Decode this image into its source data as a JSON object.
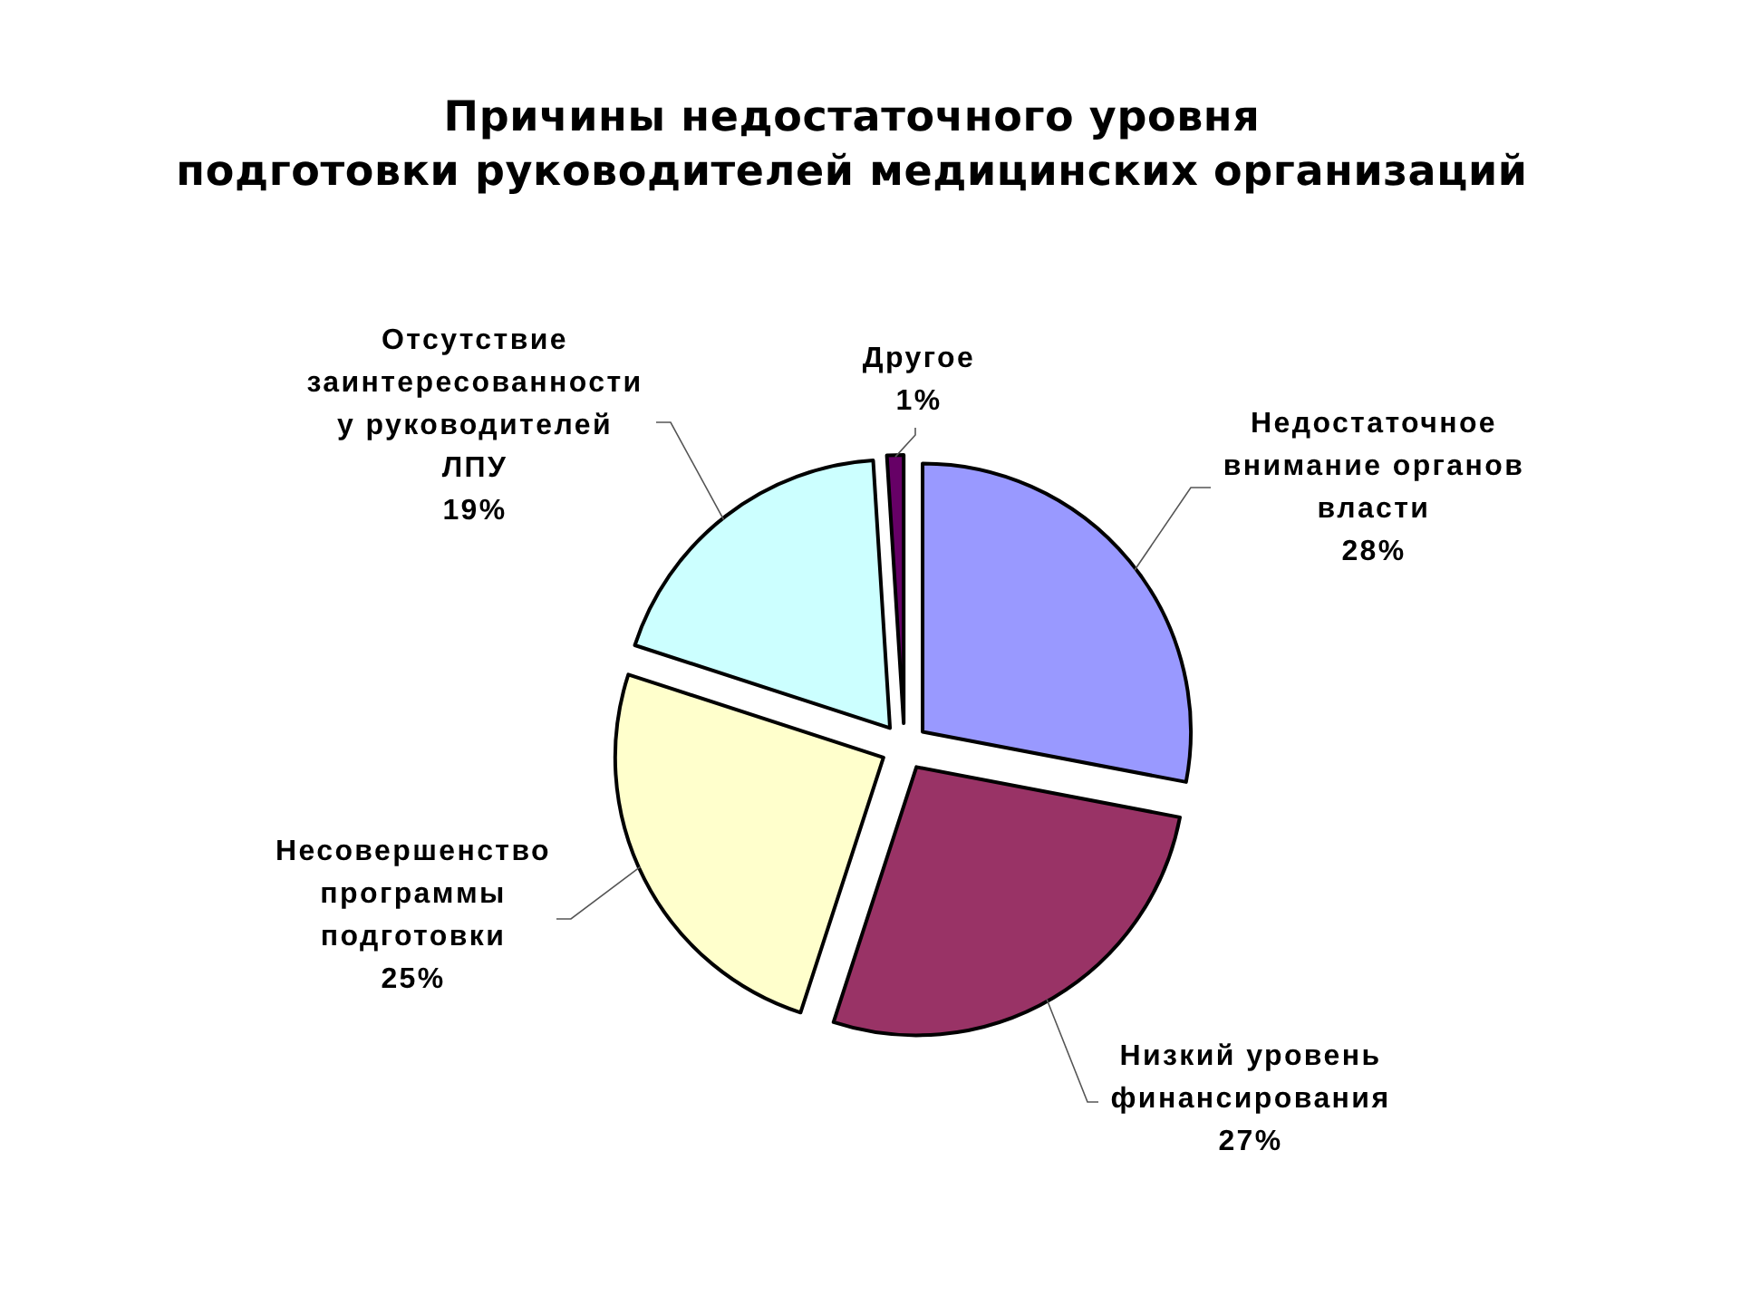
{
  "chart_data": {
    "type": "pie",
    "title": "Причины недостаточного уровня\nподготовки руководителей медицинских организаций",
    "categories": [
      "Недостаточное\nвнимание органов\nвласти",
      "Низкий уровень\nфинансирования",
      "Несовершенство\nпрограммы\nподготовки",
      "Отсутствие\nзаинтересованности\nу руководителей\nЛПУ",
      "Другое"
    ],
    "values": [
      28,
      27,
      25,
      19,
      1
    ],
    "colors": [
      "#9999ff",
      "#993366",
      "#ffffcc",
      "#ccffff",
      "#660066"
    ],
    "value_labels": [
      "28%",
      "27%",
      "25%",
      "19%",
      "1%"
    ]
  }
}
